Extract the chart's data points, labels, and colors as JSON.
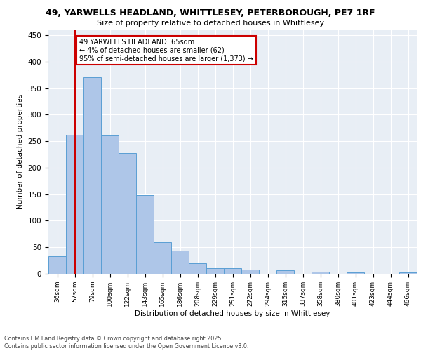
{
  "title1": "49, YARWELLS HEADLAND, WHITTLESEY, PETERBOROUGH, PE7 1RF",
  "title2": "Size of property relative to detached houses in Whittlesey",
  "xlabel": "Distribution of detached houses by size in Whittlesey",
  "ylabel": "Number of detached properties",
  "bar_labels": [
    "36sqm",
    "57sqm",
    "79sqm",
    "100sqm",
    "122sqm",
    "143sqm",
    "165sqm",
    "186sqm",
    "208sqm",
    "229sqm",
    "251sqm",
    "272sqm",
    "294sqm",
    "315sqm",
    "337sqm",
    "358sqm",
    "380sqm",
    "401sqm",
    "423sqm",
    "444sqm",
    "466sqm"
  ],
  "bar_values": [
    33,
    262,
    370,
    261,
    228,
    148,
    59,
    44,
    20,
    11,
    11,
    8,
    0,
    6,
    0,
    4,
    0,
    2,
    0,
    0,
    3
  ],
  "bar_color": "#aec6e8",
  "bar_edge_color": "#5a9fd4",
  "background_color": "#e8eef5",
  "annotation_text": "49 YARWELLS HEADLAND: 65sqm\n← 4% of detached houses are smaller (62)\n95% of semi-detached houses are larger (1,373) →",
  "annotation_box_color": "#ffffff",
  "annotation_box_edge_color": "#cc0000",
  "vline_x": 1,
  "vline_color": "#cc0000",
  "footer_text": "Contains HM Land Registry data © Crown copyright and database right 2025.\nContains public sector information licensed under the Open Government Licence v3.0.",
  "ylim": [
    0,
    460
  ],
  "yticks": [
    0,
    50,
    100,
    150,
    200,
    250,
    300,
    350,
    400,
    450
  ]
}
